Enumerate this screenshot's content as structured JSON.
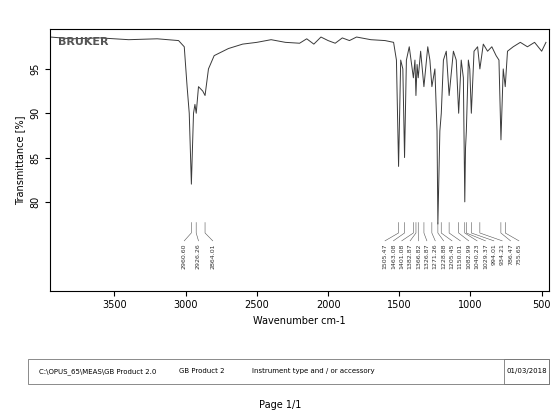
{
  "chart_data": {
    "type": "line",
    "logo": "BRUKER",
    "xlabel": "Wavenumber cm-1",
    "ylabel": "Transmittance [%]",
    "xlim": [
      3950,
      450
    ],
    "ylim": [
      70,
      99.5
    ],
    "xticks": [
      3500,
      3000,
      2500,
      2000,
      1500,
      1000,
      500
    ],
    "yticks": [
      80,
      85,
      90,
      95
    ],
    "color": "#3a3a3a",
    "grid": false,
    "x": [
      3950,
      3800,
      3600,
      3400,
      3200,
      3050,
      3010,
      2990,
      2975,
      2960,
      2945,
      2935,
      2926,
      2910,
      2880,
      2864,
      2840,
      2800,
      2700,
      2600,
      2500,
      2400,
      2300,
      2200,
      2150,
      2100,
      2050,
      2000,
      1950,
      1900,
      1850,
      1800,
      1700,
      1600,
      1540,
      1520,
      1505,
      1490,
      1475,
      1463,
      1450,
      1430,
      1401,
      1390,
      1383,
      1375,
      1367,
      1350,
      1327,
      1300,
      1285,
      1271,
      1250,
      1235,
      1229,
      1215,
      1205,
      1190,
      1170,
      1150,
      1120,
      1100,
      1083,
      1065,
      1050,
      1040,
      1035,
      1029,
      1015,
      1005,
      994,
      975,
      950,
      934,
      910,
      880,
      850,
      820,
      800,
      786,
      770,
      756,
      740,
      700,
      650,
      600,
      550,
      500,
      470
    ],
    "values": [
      98.6,
      98.4,
      98.5,
      98.3,
      98.4,
      98.2,
      97.5,
      93,
      90,
      82,
      90,
      91,
      90,
      93,
      92.5,
      92,
      95,
      96.5,
      97.3,
      97.8,
      98.0,
      98.3,
      98.0,
      97.9,
      98.4,
      97.8,
      98.6,
      98.2,
      97.9,
      98.5,
      98.2,
      98.6,
      98.3,
      98.2,
      98.0,
      96,
      84,
      96,
      95,
      85,
      96,
      97.5,
      94,
      96,
      92,
      95.5,
      94,
      97,
      93,
      97.5,
      96,
      93,
      95,
      88,
      77.5,
      88,
      90,
      96,
      97,
      92,
      97,
      96,
      90,
      96,
      94,
      80,
      86,
      88,
      96,
      95,
      90,
      97,
      97.5,
      95,
      97.8,
      97,
      97.5,
      96.5,
      96,
      87,
      95,
      93,
      97,
      97.5,
      98,
      97.5,
      98,
      97,
      98
    ],
    "peak_labels": [
      "2960.60",
      "2926.26",
      "2864.01",
      "1505.47",
      "1463.08",
      "1401.08",
      "1382.87",
      "1366.82",
      "1326.87",
      "1271.26",
      "1228.88",
      "1205.45",
      "1150.01",
      "1082.99",
      "1040.23",
      "1029.37",
      "994.01",
      "934.21",
      "786.47",
      "755.65"
    ],
    "footer": {
      "path": "C:\\OPUS_65\\MEAS\\GB Product 2.0",
      "product": "GB Product 2",
      "instrument": "Instrument type and / or accessory",
      "date": "01/03/2018"
    },
    "page": "Page 1/1"
  }
}
